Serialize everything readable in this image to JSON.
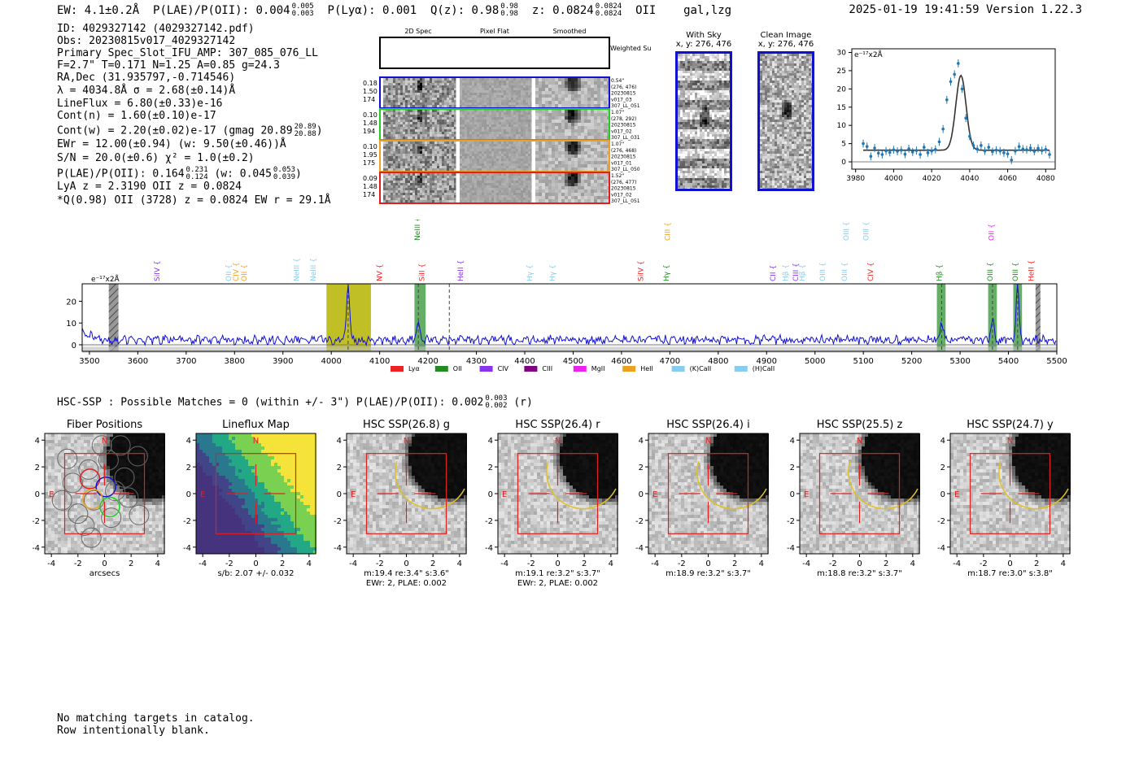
{
  "header": {
    "ew": "EW: 4.1±0.2Å",
    "plae": "P(LAE)/P(OII): 0.004",
    "plae_hi": "0.005",
    "plae_lo": "0.003",
    "plya": "P(Lyα): 0.001",
    "qz": "Q(z): 0.98",
    "qz_hi": "0.98",
    "qz_lo": "0.98",
    "z": "z: 0.0824",
    "z_hi": "0.0824",
    "z_lo": "0.0824",
    "line": "OII",
    "flags": "gal,lzg",
    "timestamp": "2025-01-19 19:41:59  Version 1.22.3"
  },
  "info": {
    "id": "ID: 4029327142 (4029327142.pdf)",
    "obs": "Obs: 20230815v017_4029327142",
    "primary": "Primary Spec_Slot_IFU_AMP: 307_085_076_LL",
    "fparams": "F=2.7\"  T=0.171  N=1.25  A=0.85  g=24.3",
    "radec": "RA,Dec (31.935797,-0.714546)",
    "lambda": "λ = 4034.8Å  σ = 2.68(±0.14)Å",
    "lineflux": "LineFlux = 6.80(±0.33)e-16",
    "contn": "Cont(n) = 1.60(±0.10)e-17",
    "contw": "Cont(w) = 2.20(±0.02)e-17 (gmag 20.89",
    "contw_hi": "20.89",
    "contw_lo": "20.88",
    "ewr": "EWr = 12.00(±0.94) (w: 9.50(±0.46))Å",
    "sn": "S/N = 20.0(±0.6)  χ² = 1.0(±0.2)",
    "plae2": "P(LAE)/P(OII): 0.164",
    "plae2_hi": "0.231",
    "plae2_lo": "0.124",
    "plae2_w": "(w: 0.045",
    "plae2_w_hi": "0.053",
    "plae2_w_lo": "0.039",
    "lya": "LyA z = 2.3190  OII z = 0.0824",
    "qline": "*Q(0.98) OII (3728) z = 0.0824  EW r = 29.1Å"
  },
  "cutouts": {
    "col_2d": "2D Spec",
    "col_flat": "Pixel Flat",
    "col_smooth": "Smoothed",
    "weighted": "Weighted Sum",
    "rows": [
      {
        "left": [
          "0.18",
          "1.50",
          "174"
        ],
        "right": [
          "0.54\"",
          "(276, 476)",
          "20230815",
          "v017_03",
          "307_LL_051"
        ],
        "color": "#1010d0"
      },
      {
        "left": [
          "0.10",
          "1.48",
          "194"
        ],
        "right": [
          "1.07\"",
          "(278, 292)",
          "20230815",
          "v017_02",
          "307_LL_031"
        ],
        "color": "#22cc22"
      },
      {
        "left": [
          "0.10",
          "1.95",
          "175"
        ],
        "right": [
          "1.07\"",
          "(276, 468)",
          "20230815",
          "v017_01",
          "307_LL_050"
        ],
        "color": "#f0a020"
      },
      {
        "left": [
          "0.09",
          "1.48",
          "174"
        ],
        "right": [
          "1.52\"",
          "(276, 477)",
          "20230815",
          "v017_02",
          "307_LL_051"
        ],
        "color": "#e02020"
      }
    ],
    "with_sky": "With Sky",
    "with_sky_xy": "x, y: 276, 476",
    "clean": "Clean Image",
    "clean_xy": "x, y: 276, 476"
  },
  "zoom_chart": {
    "unit": "e⁻¹⁷x2Å"
  },
  "spectrum_unit": "e⁻¹⁷x2Å",
  "chart_data": [
    {
      "type": "line",
      "name": "zoom",
      "xlim": [
        3978,
        4085
      ],
      "ylim": [
        -2,
        31
      ],
      "xticks": [
        3980,
        4000,
        4020,
        4040,
        4060,
        4080
      ],
      "yticks": [
        0,
        5,
        10,
        15,
        20,
        25,
        30
      ],
      "x": [
        3984,
        3986,
        3988,
        3990,
        3992,
        3994,
        3996,
        3998,
        4000,
        4002,
        4004,
        4006,
        4008,
        4010,
        4012,
        4014,
        4016,
        4018,
        4020,
        4022,
        4024,
        4026,
        4028,
        4030,
        4032,
        4034,
        4036,
        4038,
        4040,
        4042,
        4044,
        4046,
        4048,
        4050,
        4052,
        4054,
        4056,
        4058,
        4060,
        4062,
        4064,
        4066,
        4068,
        4070,
        4072,
        4074,
        4076,
        4078,
        4080,
        4082
      ],
      "y": [
        5.0,
        4.2,
        1.5,
        3.8,
        2.4,
        2.0,
        3.0,
        2.6,
        3.3,
        2.9,
        3.2,
        2.1,
        3.6,
        2.7,
        3.1,
        2.0,
        4.0,
        2.5,
        3.0,
        3.4,
        5.5,
        9.0,
        17.0,
        22.0,
        24.0,
        27.0,
        20.0,
        12.0,
        7.0,
        4.5,
        3.5,
        4.5,
        3.0,
        4.0,
        2.8,
        3.2,
        3.0,
        2.5,
        2.2,
        0.5,
        3.0,
        4.2,
        3.5,
        3.3,
        3.8,
        2.9,
        3.7,
        3.1,
        3.4,
        2.0
      ],
      "fit": {
        "center": 4035.4,
        "sigma": 2.68,
        "amp": 20.5,
        "cont": 3.2
      }
    },
    {
      "type": "line",
      "name": "spectrum",
      "xlim": [
        3485,
        5500
      ],
      "ylim": [
        -3,
        28
      ],
      "xticks": [
        3500,
        3600,
        3700,
        3800,
        3900,
        4000,
        4100,
        4200,
        4300,
        4400,
        4500,
        4600,
        4700,
        4800,
        4900,
        5000,
        5100,
        5200,
        5300,
        5400,
        5500
      ],
      "yticks": [
        0,
        10,
        20
      ],
      "emission_lines": [
        4034.8,
        4180,
        5262,
        5367,
        5419
      ],
      "emission_amps": [
        26,
        8,
        8,
        9,
        24
      ],
      "highlights": [
        {
          "from": 3990,
          "to": 4082,
          "color": "#b5b500"
        },
        {
          "from": 4172,
          "to": 4195,
          "color": "#4aa04a"
        },
        {
          "from": 5252,
          "to": 5270,
          "color": "#4aa04a"
        },
        {
          "from": 5358,
          "to": 5376,
          "color": "#4aa04a"
        },
        {
          "from": 5410,
          "to": 5428,
          "color": "#4aa04a"
        }
      ],
      "hatched": [
        {
          "from": 3540,
          "to": 3560
        },
        {
          "from": 5456,
          "to": 5466
        }
      ],
      "dashed": [
        4034.8,
        4180,
        4244,
        5262,
        5367,
        5419
      ],
      "line_labels": [
        {
          "w": 3645,
          "t": "SiIV",
          "c": "#8833ee",
          "lvl": 0
        },
        {
          "w": 3793,
          "t": "OII",
          "c": "#88ccee",
          "lvl": 0
        },
        {
          "w": 3808,
          "t": "CIV",
          "c": "#f0a020",
          "lvl": 0
        },
        {
          "w": 3825,
          "t": "OII",
          "c": "#f0a020",
          "lvl": 0
        },
        {
          "w": 3933,
          "t": "NeIII",
          "c": "#88ccee",
          "lvl": 0
        },
        {
          "w": 3968,
          "t": "NeIII",
          "c": "#88ccee",
          "lvl": 0
        },
        {
          "w": 4105,
          "t": "NV",
          "c": "#ee2222",
          "lvl": 0
        },
        {
          "w": 4183,
          "t": "NeIII",
          "c": "#228b22",
          "lvl": 1
        },
        {
          "w": 4192,
          "t": "SiII",
          "c": "#ee2222",
          "lvl": 0
        },
        {
          "w": 4272,
          "t": "HeII",
          "c": "#8833ee",
          "lvl": 0
        },
        {
          "w": 4415,
          "t": "Hγ",
          "c": "#88ccee",
          "lvl": 0
        },
        {
          "w": 4462,
          "t": "Hγ",
          "c": "#88ccee",
          "lvl": 0
        },
        {
          "w": 4645,
          "t": "SiIV",
          "c": "#ee2222",
          "lvl": 0
        },
        {
          "w": 4698,
          "t": "Hγ",
          "c": "#228b22",
          "lvl": 0
        },
        {
          "w": 4700,
          "t": "CIII",
          "c": "#f0a020",
          "lvl": 1
        },
        {
          "w": 4918,
          "t": "CII",
          "c": "#8833ee",
          "lvl": 0
        },
        {
          "w": 4944,
          "t": "Hβ",
          "c": "#88ccee",
          "lvl": 0
        },
        {
          "w": 4965,
          "t": "CIII",
          "c": "#8833ee",
          "lvl": 0
        },
        {
          "w": 4979,
          "t": "Hβ",
          "c": "#88ccee",
          "lvl": 0
        },
        {
          "w": 5021,
          "t": "OIII",
          "c": "#88ccee",
          "lvl": 0
        },
        {
          "w": 5066,
          "t": "OIII",
          "c": "#88ccee",
          "lvl": 0
        },
        {
          "w": 5069,
          "t": "OIII",
          "c": "#88ccee",
          "lvl": 1
        },
        {
          "w": 5111,
          "t": "OIII",
          "c": "#88ccee",
          "lvl": 1
        },
        {
          "w": 5120,
          "t": "CIV",
          "c": "#ee2222",
          "lvl": 0
        },
        {
          "w": 5262,
          "t": "Hβ",
          "c": "#228b22",
          "lvl": 0
        },
        {
          "w": 5367,
          "t": "OIII",
          "c": "#228b22",
          "lvl": 0
        },
        {
          "w": 5370,
          "t": "OII",
          "c": "#ee22ee",
          "lvl": 1
        },
        {
          "w": 5419,
          "t": "OIII",
          "c": "#228b22",
          "lvl": 0
        },
        {
          "w": 5452,
          "t": "HeII",
          "c": "#ee2222",
          "lvl": 0
        }
      ],
      "legend": [
        {
          "t": "Lyα",
          "c": "#ee2222"
        },
        {
          "t": "OII",
          "c": "#228b22"
        },
        {
          "t": "CIV",
          "c": "#8833ee"
        },
        {
          "t": "CIII",
          "c": "#800080"
        },
        {
          "t": "MgII",
          "c": "#ee22ee"
        },
        {
          "t": "HeII",
          "c": "#f0a020"
        },
        {
          "t": "(K)CaII",
          "c": "#88ccee"
        },
        {
          "t": "(H)CaII",
          "c": "#88ccee"
        }
      ]
    }
  ],
  "hsc": {
    "summary": "HSC-SSP : Possible Matches = 0 (within +/- 3\")  P(LAE)/P(OII): 0.002",
    "summary_hi": "0.003",
    "summary_lo": "0.002",
    "summary_tail": "(r)",
    "xlabel_arcsec": "arcsecs",
    "north": "N",
    "east": "E",
    "ticks": [
      "-4",
      "-2",
      "0",
      "2",
      "4"
    ],
    "panels": [
      {
        "title": "Fiber Positions",
        "line1": "arcsecs",
        "line2": ""
      },
      {
        "title": "Lineflux Map",
        "line1": "s/b: 2.07 +/- 0.032",
        "line2": ""
      },
      {
        "title": "HSC SSP(26.8) g",
        "line1": "m:19.4  re:3.4\"  s:3.6\"",
        "line2": "EWr: 2, PLAE: 0.002"
      },
      {
        "title": "HSC SSP(26.4) r",
        "line1": "m:19.1  re:3.2\"  s:3.7\"",
        "line2": "EWr: 2, PLAE: 0.002"
      },
      {
        "title": "HSC SSP(26.4) i",
        "line1": "m:18.9  re:3.2\"  s:3.7\"",
        "line2": ""
      },
      {
        "title": "HSC SSP(25.5) z",
        "line1": "m:18.8  re:3.2\"  s:3.7\"",
        "line2": ""
      },
      {
        "title": "HSC SSP(24.7) y",
        "line1": "m:18.7  re:3.0\"  s:3.8\"",
        "line2": ""
      }
    ]
  },
  "footer": {
    "line1": "No matching targets in catalog.",
    "line2": "Row intentionally blank."
  }
}
